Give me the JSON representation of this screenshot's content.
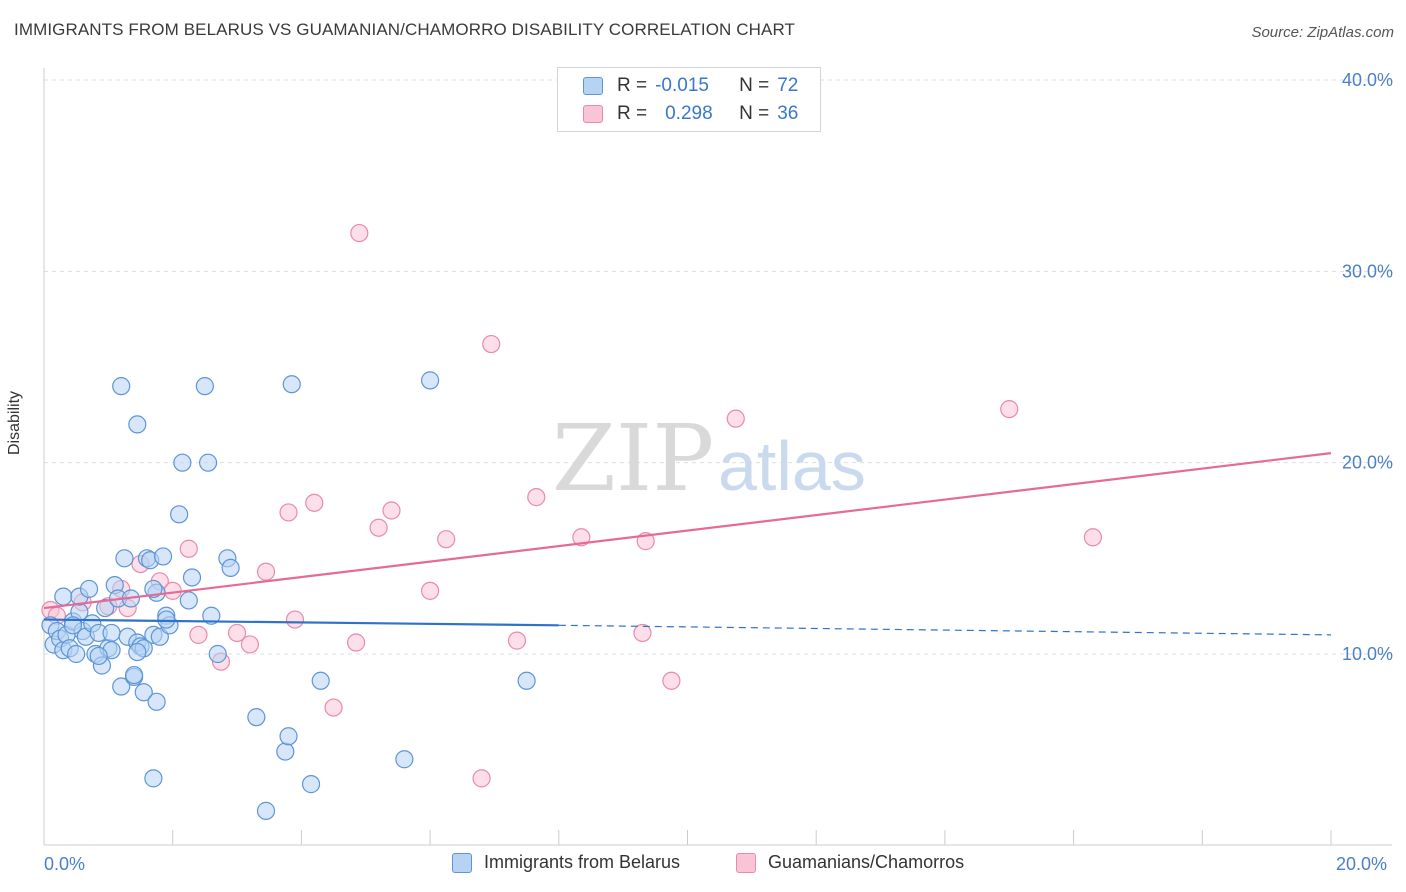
{
  "header": {
    "title": "IMMIGRANTS FROM BELARUS VS GUAMANIAN/CHAMORRO DISABILITY CORRELATION CHART",
    "source": "Source: ZipAtlas.com"
  },
  "watermark": {
    "zip": "ZIP",
    "atlas": "atlas"
  },
  "colors": {
    "blue_fill": "#b7d3f4",
    "blue_stroke": "#5e95d6",
    "blue_line": "#2f72c9",
    "pink_fill": "#f9c5d6",
    "pink_stroke": "#e98aaa",
    "pink_line": "#e56b96",
    "tick_text": "#4a7fc9",
    "grid": "#dddddd"
  },
  "legend_top": {
    "series": [
      {
        "r_label": "R =",
        "r_value": "-0.015",
        "n_label": "N =",
        "n_value": "72"
      },
      {
        "r_label": "R =",
        "r_value": "0.298",
        "n_label": "N =",
        "n_value": "36"
      }
    ]
  },
  "legend_bottom": {
    "items": [
      {
        "label": "Immigrants from Belarus"
      },
      {
        "label": "Guamanians/Chamorros"
      }
    ]
  },
  "chart_data": {
    "type": "scatter",
    "title": "IMMIGRANTS FROM BELARUS VS GUAMANIAN/CHAMORRO DISABILITY CORRELATION CHART",
    "xlabel": "",
    "ylabel": "Disability",
    "xlim": [
      0,
      20
    ],
    "ylim": [
      0,
      42
    ],
    "x_tick_labels": [
      "0.0%",
      "20.0%"
    ],
    "y_ticks": [
      10,
      20,
      30,
      40
    ],
    "y_tick_labels": [
      "10.0%",
      "20.0%",
      "30.0%",
      "40.0%"
    ],
    "grid": true,
    "legend_position": "top-center",
    "series": [
      {
        "name": "Immigrants from Belarus",
        "r": -0.015,
        "n": 72,
        "trend": {
          "x0": 0,
          "y0": 11.8,
          "x1": 8.0,
          "y1": 11.5,
          "dashed_to_x": 20.0,
          "dashed_to_y": 11.0
        },
        "points": [
          [
            0.1,
            11.5
          ],
          [
            0.15,
            10.5
          ],
          [
            0.2,
            11.2
          ],
          [
            0.25,
            10.8
          ],
          [
            0.3,
            10.2
          ],
          [
            0.3,
            13.0
          ],
          [
            0.35,
            11.0
          ],
          [
            0.4,
            10.3
          ],
          [
            0.45,
            11.7
          ],
          [
            0.5,
            10.0
          ],
          [
            0.55,
            12.2
          ],
          [
            0.55,
            13.0
          ],
          [
            0.6,
            11.2
          ],
          [
            0.65,
            10.9
          ],
          [
            0.7,
            13.4
          ],
          [
            0.75,
            11.6
          ],
          [
            0.8,
            10.0
          ],
          [
            0.85,
            11.1
          ],
          [
            0.9,
            9.4
          ],
          [
            0.95,
            12.4
          ],
          [
            1.0,
            10.3
          ],
          [
            1.05,
            11.1
          ],
          [
            1.1,
            13.6
          ],
          [
            1.15,
            12.9
          ],
          [
            1.2,
            8.3
          ],
          [
            1.25,
            15.0
          ],
          [
            1.3,
            10.9
          ],
          [
            1.35,
            12.9
          ],
          [
            1.4,
            8.8
          ],
          [
            1.45,
            10.6
          ],
          [
            1.5,
            10.4
          ],
          [
            1.55,
            10.3
          ],
          [
            1.6,
            15.0
          ],
          [
            1.65,
            14.9
          ],
          [
            1.7,
            11.0
          ],
          [
            1.75,
            13.2
          ],
          [
            1.8,
            10.9
          ],
          [
            1.85,
            15.1
          ],
          [
            1.9,
            12.0
          ],
          [
            1.95,
            11.5
          ],
          [
            1.2,
            24.0
          ],
          [
            1.45,
            22.0
          ],
          [
            1.55,
            8.0
          ],
          [
            1.7,
            3.5
          ],
          [
            1.75,
            7.5
          ],
          [
            2.1,
            17.3
          ],
          [
            2.15,
            20.0
          ],
          [
            2.25,
            12.8
          ],
          [
            2.3,
            14.0
          ],
          [
            2.5,
            24.0
          ],
          [
            2.55,
            20.0
          ],
          [
            2.6,
            12.0
          ],
          [
            2.7,
            10.0
          ],
          [
            2.85,
            15.0
          ],
          [
            2.9,
            14.5
          ],
          [
            3.3,
            6.7
          ],
          [
            3.45,
            1.8
          ],
          [
            3.75,
            4.9
          ],
          [
            3.8,
            5.7
          ],
          [
            3.85,
            24.1
          ],
          [
            4.15,
            3.2
          ],
          [
            4.3,
            8.6
          ],
          [
            5.6,
            4.5
          ],
          [
            6.0,
            24.3
          ],
          [
            7.5,
            8.6
          ],
          [
            0.45,
            11.5
          ],
          [
            1.05,
            10.2
          ],
          [
            1.7,
            13.4
          ],
          [
            0.85,
            9.9
          ],
          [
            1.45,
            10.1
          ],
          [
            1.4,
            8.9
          ],
          [
            1.9,
            11.8
          ]
        ]
      },
      {
        "name": "Guamanians/Chamorros",
        "r": 0.298,
        "n": 36,
        "trend": {
          "x0": 0,
          "y0": 12.4,
          "x1": 20.0,
          "y1": 20.5
        },
        "points": [
          [
            0.1,
            12.3
          ],
          [
            0.2,
            12.0
          ],
          [
            0.6,
            12.7
          ],
          [
            1.0,
            12.5
          ],
          [
            1.3,
            12.4
          ],
          [
            1.5,
            14.7
          ],
          [
            1.8,
            13.8
          ],
          [
            2.0,
            13.3
          ],
          [
            2.25,
            15.5
          ],
          [
            2.4,
            11.0
          ],
          [
            2.75,
            9.6
          ],
          [
            3.0,
            11.1
          ],
          [
            3.2,
            10.5
          ],
          [
            3.45,
            14.3
          ],
          [
            3.8,
            17.4
          ],
          [
            3.9,
            11.8
          ],
          [
            4.2,
            17.9
          ],
          [
            4.5,
            7.2
          ],
          [
            4.85,
            10.6
          ],
          [
            4.9,
            32.0
          ],
          [
            5.2,
            16.6
          ],
          [
            5.4,
            17.5
          ],
          [
            6.0,
            13.3
          ],
          [
            6.25,
            16.0
          ],
          [
            6.8,
            3.5
          ],
          [
            6.95,
            26.2
          ],
          [
            7.35,
            10.7
          ],
          [
            7.65,
            18.2
          ],
          [
            8.35,
            16.1
          ],
          [
            9.3,
            11.1
          ],
          [
            9.35,
            15.9
          ],
          [
            9.75,
            8.6
          ],
          [
            10.75,
            22.3
          ],
          [
            15.0,
            22.8
          ],
          [
            16.3,
            16.1
          ],
          [
            1.2,
            13.4
          ]
        ]
      }
    ]
  }
}
